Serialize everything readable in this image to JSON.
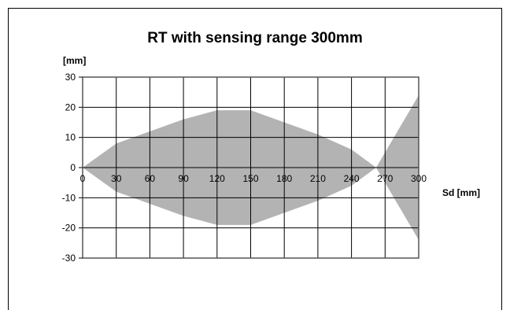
{
  "chart_data": {
    "type": "area",
    "title": "RT with sensing range 300mm",
    "xlabel": "Sd [mm]",
    "ylabel": "[mm]",
    "xlim": [
      0,
      300
    ],
    "ylim": [
      -30,
      30
    ],
    "xticks": [
      0,
      30,
      60,
      90,
      120,
      150,
      180,
      210,
      240,
      270,
      300
    ],
    "yticks": [
      30,
      20,
      10,
      0,
      -10,
      -20,
      -30
    ],
    "grid": true,
    "fill_color": "#b3b3b3",
    "series": [
      {
        "upper": [
          [
            0,
            0
          ],
          [
            30,
            8
          ],
          [
            60,
            12
          ],
          [
            90,
            16
          ],
          [
            120,
            19
          ],
          [
            150,
            19
          ],
          [
            180,
            15
          ],
          [
            210,
            11
          ],
          [
            240,
            6
          ],
          [
            262,
            0
          ]
        ],
        "lower": [
          [
            0,
            0
          ],
          [
            30,
            -8
          ],
          [
            60,
            -12
          ],
          [
            90,
            -16
          ],
          [
            120,
            -19
          ],
          [
            150,
            -19
          ],
          [
            180,
            -15
          ],
          [
            210,
            -11
          ],
          [
            240,
            -6
          ],
          [
            262,
            0
          ]
        ]
      },
      {
        "upper": [
          [
            262,
            0
          ],
          [
            300,
            24
          ]
        ],
        "lower": [
          [
            262,
            0
          ],
          [
            300,
            -24
          ]
        ]
      }
    ]
  }
}
